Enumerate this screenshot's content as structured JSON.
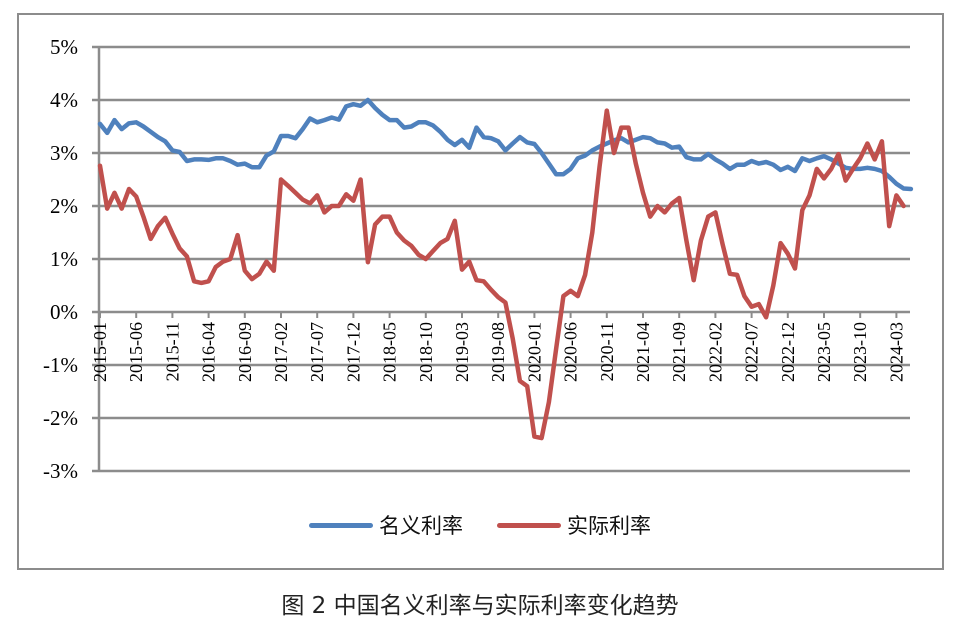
{
  "caption": "图 2  中国名义利率与实际利率变化趋势",
  "legend": [
    {
      "label": "名义利率",
      "color": "#4f81bd"
    },
    {
      "label": "实际利率",
      "color": "#c0504d"
    }
  ],
  "chart_data": {
    "type": "line",
    "title": "图 2  中国名义利率与实际利率变化趋势",
    "xlabel": "",
    "ylabel": "",
    "ylim": [
      -3,
      5
    ],
    "yticks": [
      "5%",
      "4%",
      "3%",
      "2%",
      "1%",
      "0%",
      "-1%",
      "-2%",
      "-3%"
    ],
    "xtick_labels": [
      "2015-01",
      "2015-06",
      "2015-11",
      "2016-04",
      "2016-09",
      "2017-02",
      "2017-07",
      "2017-12",
      "2018-05",
      "2018-10",
      "2019-03",
      "2019-08",
      "2020-01",
      "2020-06",
      "2020-11",
      "2021-04",
      "2021-09",
      "2022-02",
      "2022-07",
      "2022-12",
      "2023-05",
      "2023-10",
      "2024-03"
    ],
    "grid": true,
    "legend_position": "bottom",
    "x_start": "2015-01",
    "x_frequency": "monthly",
    "series": [
      {
        "name": "名义利率",
        "color": "#4f81bd",
        "values": [
          3.55,
          3.38,
          3.62,
          3.45,
          3.56,
          3.58,
          3.5,
          3.4,
          3.3,
          3.22,
          3.05,
          3.02,
          2.85,
          2.88,
          2.88,
          2.87,
          2.9,
          2.9,
          2.85,
          2.78,
          2.8,
          2.73,
          2.73,
          2.95,
          3.03,
          3.32,
          3.32,
          3.28,
          3.45,
          3.65,
          3.58,
          3.62,
          3.67,
          3.63,
          3.88,
          3.92,
          3.89,
          4.0,
          3.85,
          3.72,
          3.62,
          3.62,
          3.48,
          3.5,
          3.58,
          3.58,
          3.52,
          3.4,
          3.25,
          3.15,
          3.25,
          3.1,
          3.48,
          3.3,
          3.28,
          3.22,
          3.05,
          3.18,
          3.3,
          3.2,
          3.17,
          3.0,
          2.8,
          2.6,
          2.6,
          2.7,
          2.9,
          2.95,
          3.05,
          3.12,
          3.18,
          3.24,
          3.28,
          3.2,
          3.25,
          3.3,
          3.28,
          3.2,
          3.18,
          3.1,
          3.12,
          2.92,
          2.88,
          2.88,
          2.98,
          2.88,
          2.8,
          2.7,
          2.78,
          2.78,
          2.85,
          2.8,
          2.83,
          2.78,
          2.68,
          2.74,
          2.66,
          2.9,
          2.85,
          2.9,
          2.94,
          2.88,
          2.8,
          2.72,
          2.7,
          2.7,
          2.72,
          2.7,
          2.66,
          2.55,
          2.42,
          2.33,
          2.32
        ]
      },
      {
        "name": "实际利率",
        "color": "#c0504d",
        "values": [
          2.76,
          1.95,
          2.25,
          1.95,
          2.32,
          2.18,
          1.8,
          1.38,
          1.62,
          1.78,
          1.48,
          1.2,
          1.05,
          0.58,
          0.55,
          0.58,
          0.85,
          0.95,
          1.0,
          1.45,
          0.78,
          0.62,
          0.72,
          0.95,
          0.78,
          2.5,
          2.38,
          2.25,
          2.12,
          2.05,
          2.2,
          1.88,
          2.0,
          2.0,
          2.22,
          2.1,
          2.5,
          0.94,
          1.65,
          1.8,
          1.8,
          1.5,
          1.35,
          1.25,
          1.08,
          1.0,
          1.15,
          1.3,
          1.38,
          1.72,
          0.8,
          0.95,
          0.6,
          0.58,
          0.42,
          0.28,
          0.18,
          -0.5,
          -1.3,
          -1.4,
          -2.35,
          -2.38,
          -1.7,
          -0.7,
          0.3,
          0.4,
          0.3,
          0.7,
          1.5,
          2.75,
          3.8,
          3.0,
          3.48,
          3.48,
          2.8,
          2.25,
          1.8,
          2.0,
          1.88,
          2.05,
          2.15,
          1.35,
          0.6,
          1.35,
          1.8,
          1.88,
          1.28,
          0.72,
          0.7,
          0.3,
          0.1,
          0.15,
          -0.1,
          0.5,
          1.3,
          1.1,
          0.82,
          1.92,
          2.2,
          2.7,
          2.52,
          2.7,
          2.98,
          2.48,
          2.7,
          2.9,
          3.18,
          2.88,
          3.22,
          1.62,
          2.2,
          2.0
        ]
      }
    ]
  }
}
